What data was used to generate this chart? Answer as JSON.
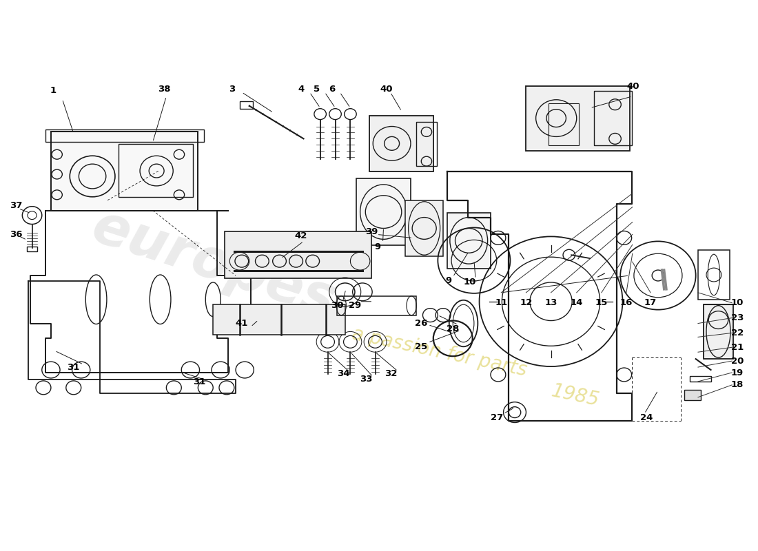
{
  "background_color": "#ffffff",
  "line_color": "#1a1a1a",
  "watermark1": "europes",
  "watermark2": "a passion for parts",
  "watermark3": "1985",
  "label_fontsize": 9.5,
  "label_fontweight": "bold"
}
